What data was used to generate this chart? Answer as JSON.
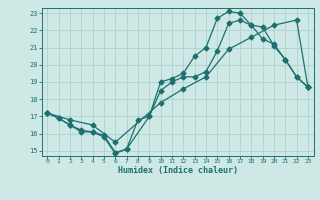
{
  "xlabel": "Humidex (Indice chaleur)",
  "xlim": [
    -0.5,
    23.5
  ],
  "ylim": [
    14.7,
    23.3
  ],
  "yticks": [
    15,
    16,
    17,
    18,
    19,
    20,
    21,
    22,
    23
  ],
  "xticks": [
    0,
    1,
    2,
    3,
    4,
    5,
    6,
    7,
    8,
    9,
    10,
    11,
    12,
    13,
    14,
    15,
    16,
    17,
    18,
    19,
    20,
    21,
    22,
    23
  ],
  "background_color": "#cde8e5",
  "grid_color": "#a8ceca",
  "line_color": "#1e7070",
  "line1_x": [
    0,
    1,
    2,
    3,
    4,
    5,
    6,
    7,
    8,
    9,
    10,
    11,
    12,
    13,
    14,
    15,
    16,
    17,
    18,
    19,
    20,
    21,
    22,
    23
  ],
  "line1_y": [
    17.2,
    16.9,
    16.5,
    16.1,
    16.1,
    15.8,
    14.85,
    15.1,
    16.8,
    17.0,
    19.0,
    19.2,
    19.5,
    20.5,
    21.0,
    22.7,
    23.1,
    23.0,
    22.3,
    22.2,
    21.1,
    20.3,
    19.3,
    18.7
  ],
  "line2_x": [
    0,
    1,
    2,
    3,
    4,
    5,
    6,
    7,
    9,
    10,
    11,
    12,
    13,
    14,
    15,
    16,
    17,
    18,
    19,
    20,
    21,
    22,
    23
  ],
  "line2_y": [
    17.2,
    16.9,
    16.5,
    16.2,
    16.1,
    15.9,
    14.9,
    15.1,
    17.0,
    18.5,
    19.0,
    19.3,
    19.3,
    19.6,
    20.8,
    22.4,
    22.6,
    22.3,
    21.5,
    21.2,
    20.3,
    19.3,
    18.7
  ],
  "line3_x": [
    0,
    2,
    4,
    6,
    10,
    12,
    14,
    16,
    18,
    20,
    22,
    23
  ],
  "line3_y": [
    17.2,
    16.8,
    16.5,
    15.5,
    17.8,
    18.6,
    19.3,
    20.9,
    21.6,
    22.3,
    22.6,
    18.7
  ]
}
